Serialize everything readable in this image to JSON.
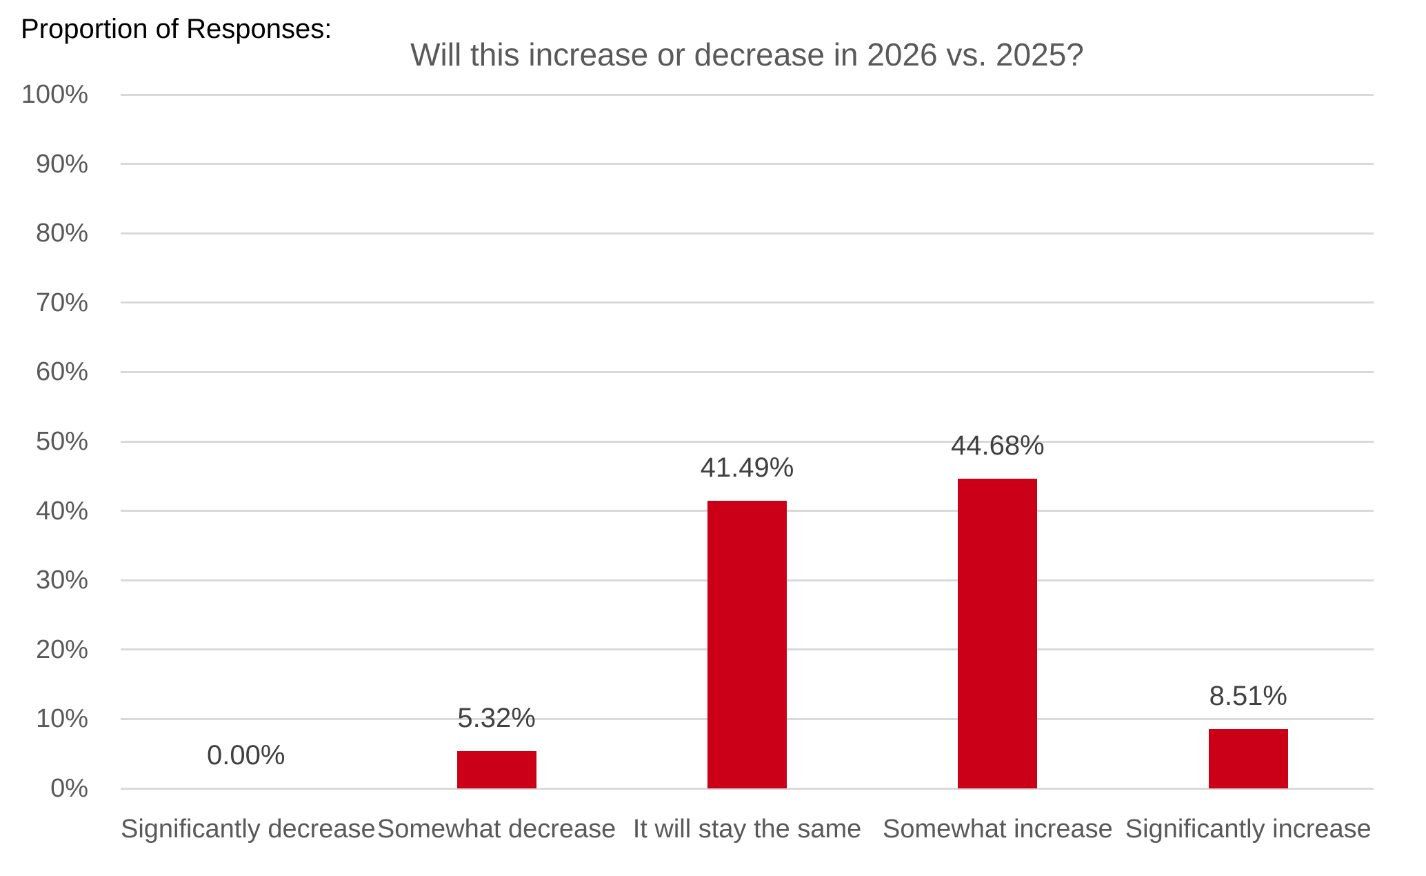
{
  "header": {
    "left_label": "Proportion of Responses:"
  },
  "chart_data": {
    "type": "bar",
    "title": "Will this increase or decrease in 2026 vs. 2025?",
    "categories": [
      "Significantly decrease",
      "Somewhat decrease",
      "It will stay the same",
      "Somewhat increase",
      "Significantly increase"
    ],
    "values": [
      0,
      5.32,
      41.49,
      44.68,
      8.51
    ],
    "data_labels": [
      "0.00%",
      "5.32%",
      "41.49%",
      "44.68%",
      "8.51%"
    ],
    "y_tick_labels": [
      "0%",
      "10%",
      "20%",
      "30%",
      "40%",
      "50%",
      "60%",
      "70%",
      "80%",
      "90%",
      "100%"
    ],
    "ylim": [
      0,
      100
    ],
    "grid": true,
    "legend_position": "none",
    "colors": {
      "bar": "#CB0018",
      "title": "#595959",
      "axis_labels": "#595959",
      "data_labels": "#404040",
      "gridlines": "#D9D9D9",
      "corner_label": "#000000",
      "background": "#FFFFFF"
    }
  }
}
